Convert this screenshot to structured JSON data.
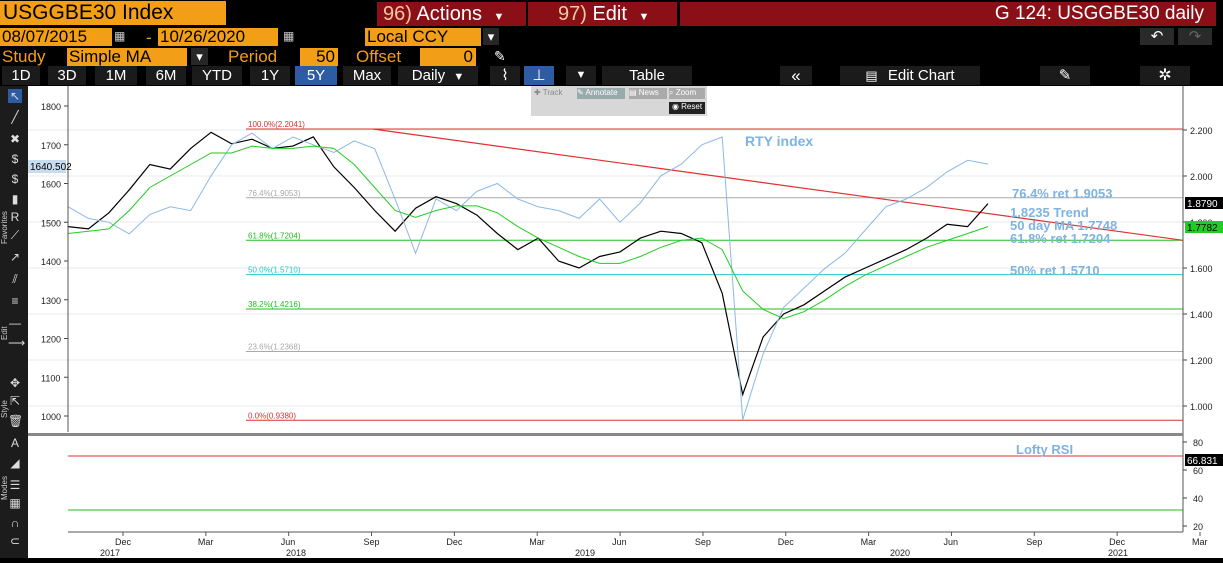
{
  "header": {
    "ticker_title": "USGGBE30 Index",
    "actions_num": "96)",
    "actions_label": "Actions",
    "edit_num": "97)",
    "edit_label": "Edit",
    "window_title": "G 124: USGGBE30 daily"
  },
  "range": {
    "start": "08/07/2015",
    "dash": "-",
    "end": "10/26/2020",
    "currency": "Local CCY"
  },
  "study": {
    "label": "Study",
    "name": "Simple MA",
    "period_label": "Period",
    "period": "50",
    "offset_label": "Offset",
    "offset": "0"
  },
  "toolbar": {
    "periods": [
      "1D",
      "3D",
      "1M",
      "6M",
      "YTD",
      "1Y",
      "5Y",
      "Max"
    ],
    "active": "5Y",
    "frequency": "Daily",
    "table": "Table",
    "edit_chart": "Edit Chart"
  },
  "subtools": {
    "track": "Track",
    "annotate": "Annotate",
    "news": "News",
    "zoom": "Zoom",
    "reset": "Reset"
  },
  "side_labels": {
    "favorites": "Favorites",
    "edit": "Edit",
    "style": "Style",
    "modes": "Modes"
  },
  "chart_data": {
    "type": "line",
    "left_axis_ticks": [
      1800,
      1700,
      1600,
      1500,
      1400,
      1300,
      1200,
      1100,
      1000
    ],
    "left_last_value": "1640.502",
    "right_axis_ticks": [
      "2.200",
      "2.000",
      "1.800",
      "1.600",
      "1.400",
      "1.200",
      "1.000"
    ],
    "right_last_value": "1.8790",
    "ma_last_value": "1.7782",
    "rsi_ticks": [
      80,
      60,
      40,
      20
    ],
    "rsi_last_value": "66.831",
    "x_ticks": [
      "Dec",
      "Mar",
      "Jun",
      "Sep",
      "Dec",
      "Mar",
      "Jun",
      "Sep",
      "Dec",
      "Mar",
      "Jun",
      "Sep",
      "Dec",
      "Mar"
    ],
    "years": [
      "2017",
      "2018",
      "2019",
      "2020",
      "2021"
    ],
    "fib_levels": [
      {
        "label": "100.0%(2.2041)",
        "value": 2.2041,
        "color": "#e03030"
      },
      {
        "label": "76.4%(1.9053)",
        "value": 1.9053,
        "color": "#a8a8a8"
      },
      {
        "label": "61.8%(1.7204)",
        "value": 1.7204,
        "color": "#22bb22"
      },
      {
        "label": "50.0%(1.5710)",
        "value": 1.571,
        "color": "#22c8c8"
      },
      {
        "label": "38.2%(1.4216)",
        "value": 1.4216,
        "color": "#22bb22"
      },
      {
        "label": "23.6%(1.2368)",
        "value": 1.2368,
        "color": "#a8a8a8"
      },
      {
        "label": "0.0%(0.9380)",
        "value": 0.938,
        "color": "#e03030"
      }
    ],
    "annotations": {
      "rty": "RTY index",
      "ret764": "76.4% ret 1.9053",
      "trend": "1.8235 Trend",
      "ma": "50 day MA 1.7748",
      "ret618": "61.8% ret 1.7204",
      "ret50": "50% ret 1.5710",
      "rsi": "Lofty RSI"
    },
    "series": [
      {
        "name": "USGGBE30 Index",
        "color": "#000000",
        "values": [
          1.78,
          1.77,
          1.84,
          1.94,
          2.05,
          2.03,
          2.12,
          2.19,
          2.14,
          2.16,
          2.12,
          2.13,
          2.17,
          2.04,
          1.95,
          1.85,
          1.76,
          1.86,
          1.91,
          1.88,
          1.83,
          1.75,
          1.68,
          1.73,
          1.63,
          1.6,
          1.65,
          1.67,
          1.73,
          1.76,
          1.75,
          1.71,
          1.49,
          1.05,
          1.3,
          1.4,
          1.44,
          1.5,
          1.56,
          1.6,
          1.64,
          1.68,
          1.73,
          1.79,
          1.78,
          1.88
        ]
      },
      {
        "name": "RTY index",
        "color": "#8ab8e6",
        "values": [
          1540,
          1510,
          1500,
          1470,
          1520,
          1540,
          1530,
          1620,
          1700,
          1730,
          1690,
          1720,
          1700,
          1680,
          1710,
          1690,
          1560,
          1420,
          1560,
          1530,
          1580,
          1600,
          1560,
          1540,
          1530,
          1510,
          1560,
          1500,
          1550,
          1620,
          1650,
          1700,
          1720,
          990,
          1160,
          1280,
          1330,
          1380,
          1420,
          1480,
          1540,
          1560,
          1590,
          1630,
          1660,
          1650
        ]
      },
      {
        "name": "50 day MA",
        "color": "#22cc22",
        "values": [
          1.75,
          1.76,
          1.77,
          1.85,
          1.95,
          2.0,
          2.05,
          2.1,
          2.1,
          2.13,
          2.12,
          2.12,
          2.13,
          2.12,
          2.05,
          1.95,
          1.85,
          1.82,
          1.85,
          1.87,
          1.87,
          1.84,
          1.78,
          1.73,
          1.69,
          1.65,
          1.62,
          1.62,
          1.65,
          1.69,
          1.72,
          1.73,
          1.68,
          1.5,
          1.42,
          1.38,
          1.41,
          1.46,
          1.52,
          1.57,
          1.61,
          1.65,
          1.69,
          1.72,
          1.75,
          1.78
        ]
      }
    ],
    "trend_line": {
      "start": 2.2041,
      "end": 1.7204
    }
  }
}
